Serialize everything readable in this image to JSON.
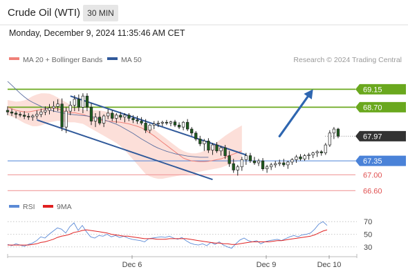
{
  "header": {
    "title": "Crude Oil (WTI)",
    "timeframe": "30 MIN",
    "datetime": "Monday, December 9, 2024 11:35:46 AM CET"
  },
  "legend": {
    "ma20_label": "MA 20 + Bollinger Bands",
    "ma50_label": "MA 50",
    "credit": "Research © 2024 Trading Central",
    "rsi_label": "RSI",
    "ma9_label": "9MA"
  },
  "colors": {
    "candle_up": "#ffffff",
    "candle_down": "#1f5c1f",
    "candle_wick": "#222222",
    "bollinger_fill": "#fcd9d2",
    "ma20": "#f08078",
    "ma50": "#5b6fa0",
    "channel": "#30599a",
    "resistance": "#6aa81e",
    "pivot": "#4a82d8",
    "support": "#f09a9a",
    "last_price_bg": "#333333",
    "rsi": "#5b8ad6",
    "rsi_ma": "#e02020",
    "arrow": "#2e66b0"
  },
  "chart_data": {
    "type": "candlestick",
    "title": "Crude Oil (WTI)",
    "timeframe": "30 MIN",
    "x_tick_labels": [
      "Dec 6",
      "Dec 9",
      "Dec 10"
    ],
    "ylim": [
      66.45,
      69.4
    ],
    "levels": [
      {
        "value": 69.15,
        "label": "69.15",
        "role": "resistance"
      },
      {
        "value": 68.7,
        "label": "68.70",
        "role": "resistance"
      },
      {
        "value": 67.97,
        "label": "67.97",
        "role": "last"
      },
      {
        "value": 67.35,
        "label": "67.35",
        "role": "pivot"
      },
      {
        "value": 67.0,
        "label": "67.00",
        "role": "support"
      },
      {
        "value": 66.6,
        "label": "66.60",
        "role": "support"
      }
    ],
    "candles": [
      [
        68.62,
        68.72,
        68.5,
        68.58
      ],
      [
        68.58,
        68.66,
        68.48,
        68.55
      ],
      [
        68.55,
        68.6,
        68.42,
        68.52
      ],
      [
        68.52,
        68.58,
        68.45,
        68.5
      ],
      [
        68.5,
        68.6,
        68.4,
        68.47
      ],
      [
        68.47,
        68.55,
        68.38,
        68.45
      ],
      [
        68.45,
        68.52,
        68.36,
        68.48
      ],
      [
        68.48,
        68.62,
        68.4,
        68.52
      ],
      [
        68.52,
        68.66,
        68.45,
        68.58
      ],
      [
        68.58,
        68.72,
        68.5,
        68.62
      ],
      [
        68.62,
        68.78,
        68.52,
        68.68
      ],
      [
        68.68,
        68.85,
        68.58,
        68.72
      ],
      [
        68.72,
        68.9,
        68.6,
        68.78
      ],
      [
        68.78,
        68.92,
        68.1,
        68.2
      ],
      [
        68.2,
        68.7,
        68.05,
        68.6
      ],
      [
        68.6,
        68.85,
        68.5,
        68.75
      ],
      [
        68.75,
        69.0,
        68.6,
        68.9
      ],
      [
        68.9,
        69.02,
        68.6,
        68.7
      ],
      [
        68.7,
        69.05,
        68.55,
        68.98
      ],
      [
        68.98,
        69.05,
        68.6,
        68.7
      ],
      [
        68.7,
        68.8,
        68.25,
        68.35
      ],
      [
        68.35,
        68.55,
        68.2,
        68.45
      ],
      [
        68.45,
        68.6,
        68.25,
        68.3
      ],
      [
        68.3,
        68.52,
        68.2,
        68.48
      ],
      [
        68.48,
        68.65,
        68.4,
        68.55
      ],
      [
        68.55,
        68.62,
        68.35,
        68.42
      ],
      [
        68.42,
        68.55,
        68.3,
        68.5
      ],
      [
        68.5,
        68.58,
        68.38,
        68.45
      ],
      [
        68.45,
        68.55,
        68.32,
        68.5
      ],
      [
        68.5,
        68.55,
        68.35,
        68.42
      ],
      [
        68.42,
        68.5,
        68.3,
        68.38
      ],
      [
        68.38,
        68.48,
        68.28,
        68.35
      ],
      [
        68.35,
        68.45,
        68.25,
        68.3
      ],
      [
        68.3,
        68.4,
        68.05,
        68.12
      ],
      [
        68.12,
        68.28,
        68.05,
        68.25
      ],
      [
        68.25,
        68.35,
        68.15,
        68.28
      ],
      [
        68.28,
        68.36,
        68.2,
        68.3
      ],
      [
        68.3,
        68.36,
        68.22,
        68.32
      ],
      [
        68.32,
        68.38,
        68.25,
        68.3
      ],
      [
        68.3,
        68.36,
        68.22,
        68.33
      ],
      [
        68.33,
        68.38,
        68.2,
        68.25
      ],
      [
        68.25,
        68.32,
        68.15,
        68.2
      ],
      [
        68.2,
        68.35,
        68.12,
        68.32
      ],
      [
        68.32,
        68.4,
        68.1,
        68.15
      ],
      [
        68.15,
        68.2,
        67.98,
        68.05
      ],
      [
        68.05,
        68.1,
        67.85,
        67.9
      ],
      [
        67.9,
        67.98,
        67.72,
        67.78
      ],
      [
        67.78,
        67.9,
        67.6,
        67.85
      ],
      [
        67.85,
        67.92,
        67.55,
        67.62
      ],
      [
        67.62,
        67.8,
        67.5,
        67.75
      ],
      [
        67.75,
        67.82,
        67.55,
        67.6
      ],
      [
        67.6,
        67.72,
        67.48,
        67.68
      ],
      [
        67.68,
        67.75,
        67.4,
        67.48
      ],
      [
        67.48,
        67.6,
        67.2,
        67.28
      ],
      [
        67.28,
        67.4,
        67.05,
        67.12
      ],
      [
        67.12,
        67.25,
        66.98,
        67.2
      ],
      [
        67.2,
        67.45,
        67.1,
        67.38
      ],
      [
        67.38,
        67.55,
        67.25,
        67.48
      ],
      [
        67.48,
        67.55,
        67.3,
        67.35
      ],
      [
        67.35,
        67.45,
        67.25,
        67.3
      ],
      [
        67.3,
        67.4,
        67.22,
        67.35
      ],
      [
        67.35,
        67.42,
        67.1,
        67.15
      ],
      [
        67.15,
        67.25,
        67.05,
        67.2
      ],
      [
        67.2,
        67.3,
        67.12,
        67.25
      ],
      [
        67.25,
        67.35,
        67.18,
        67.28
      ],
      [
        67.28,
        67.38,
        67.22,
        67.3
      ],
      [
        67.3,
        67.4,
        67.2,
        67.25
      ],
      [
        67.25,
        67.35,
        67.15,
        67.32
      ],
      [
        67.32,
        67.42,
        67.25,
        67.38
      ],
      [
        67.38,
        67.5,
        67.3,
        67.45
      ],
      [
        67.45,
        67.52,
        67.35,
        67.4
      ],
      [
        67.4,
        67.52,
        67.35,
        67.48
      ],
      [
        67.48,
        67.55,
        67.38,
        67.5
      ],
      [
        67.5,
        67.58,
        67.42,
        67.55
      ],
      [
        67.55,
        67.62,
        67.45,
        67.58
      ],
      [
        67.58,
        67.62,
        67.48,
        67.55
      ],
      [
        67.55,
        67.8,
        67.5,
        67.75
      ],
      [
        67.75,
        68.12,
        67.7,
        68.05
      ],
      [
        68.05,
        68.2,
        67.9,
        68.15
      ],
      [
        68.15,
        68.18,
        67.92,
        67.97
      ]
    ],
    "ma20": [
      68.7,
      68.66,
      68.62,
      68.6,
      68.58,
      68.58,
      68.6,
      68.62,
      68.64,
      68.66,
      68.68,
      68.68,
      68.66,
      68.62,
      68.58,
      68.56,
      68.56,
      68.54,
      68.52,
      68.48,
      68.44,
      68.4,
      68.38,
      68.36,
      68.35,
      68.34,
      68.33,
      68.32,
      68.3,
      68.28,
      68.25,
      68.22,
      68.18,
      68.12,
      68.05,
      67.98,
      67.9,
      67.82,
      67.74,
      67.66,
      67.58,
      67.5,
      67.42,
      67.38,
      67.35,
      67.34,
      67.33,
      67.33,
      67.34,
      67.36,
      67.38,
      67.4,
      67.44,
      67.48,
      67.52,
      67.56,
      67.6
    ],
    "bb_upper": [
      68.88,
      68.86,
      68.84,
      68.85,
      68.87,
      68.92,
      68.98,
      69.02,
      69.05,
      69.05,
      69.04,
      69.0,
      68.94,
      68.88,
      68.82,
      68.76,
      68.72,
      68.68,
      68.64,
      68.62,
      68.62,
      68.62,
      68.62,
      68.6,
      68.58,
      68.56,
      68.52,
      68.48,
      68.44,
      68.4,
      68.36,
      68.32,
      68.28,
      68.24,
      68.2,
      68.14,
      68.06,
      67.98,
      67.9,
      67.82,
      67.74,
      67.66,
      67.6,
      67.56,
      67.54,
      67.54,
      67.56,
      67.6,
      67.66,
      67.74,
      67.82,
      67.9,
      67.98,
      68.05,
      68.12,
      68.18,
      68.24
    ],
    "bb_lower": [
      68.5,
      68.46,
      68.42,
      68.36,
      68.3,
      68.26,
      68.22,
      68.22,
      68.24,
      68.28,
      68.32,
      68.34,
      68.36,
      68.34,
      68.32,
      68.32,
      68.32,
      68.3,
      68.28,
      68.22,
      68.16,
      68.1,
      68.04,
      67.98,
      67.92,
      67.86,
      67.8,
      67.72,
      67.62,
      67.5,
      67.38,
      67.26,
      67.14,
      67.02,
      66.96,
      66.92,
      66.9,
      66.9,
      66.92,
      66.94,
      66.96,
      66.98,
      67.0,
      67.02,
      67.04,
      67.06,
      67.08,
      67.1,
      67.12,
      67.14,
      67.16,
      67.18,
      67.22,
      67.26,
      67.3,
      67.34,
      67.38
    ],
    "ma50": [
      69.35,
      69.25,
      69.15,
      69.05,
      68.96,
      68.88,
      68.82,
      68.77,
      68.72,
      68.68,
      68.64,
      68.6,
      68.58,
      68.56,
      68.54,
      68.52,
      68.51,
      68.5,
      68.49,
      68.48,
      68.46,
      68.44,
      68.41,
      68.38,
      68.35,
      68.31,
      68.27,
      68.22,
      68.16,
      68.1,
      68.04,
      67.97,
      67.9,
      67.84,
      67.78,
      67.72,
      67.67,
      67.63,
      67.59,
      67.56,
      67.53,
      67.51,
      67.49,
      67.47,
      67.46,
      67.45,
      67.44,
      67.44,
      67.44
    ],
    "channel_upper": {
      "start": [
        15,
        68.98
      ],
      "end": [
        57,
        67.5
      ]
    },
    "channel_lower": {
      "start": [
        7,
        68.38
      ],
      "end": [
        49,
        66.88
      ]
    },
    "projection_arrow": {
      "start": [
        65,
        67.97
      ],
      "end": [
        73,
        69.15
      ]
    },
    "rsi": {
      "ylim": [
        20,
        80
      ],
      "ticks": [
        30,
        50,
        70
      ],
      "rsi_values": [
        34,
        32,
        35,
        33,
        31,
        34,
        36,
        40,
        46,
        44,
        50,
        55,
        60,
        58,
        52,
        62,
        68,
        56,
        64,
        54,
        46,
        44,
        48,
        47,
        50,
        46,
        48,
        45,
        47,
        44,
        42,
        41,
        40,
        38,
        43,
        44,
        45,
        46,
        45,
        47,
        44,
        42,
        45,
        40,
        36,
        34,
        33,
        35,
        32,
        37,
        34,
        38,
        33,
        30,
        28,
        35,
        41,
        44,
        40,
        38,
        40,
        35,
        38,
        40,
        41,
        42,
        40,
        43,
        46,
        48,
        46,
        49,
        50,
        52,
        58,
        66,
        70,
        64
      ],
      "ma_values": [
        33,
        33,
        33,
        33,
        33,
        33,
        34,
        35,
        37,
        38,
        40,
        42,
        45,
        47,
        48,
        50,
        53,
        54,
        56,
        57,
        56,
        55,
        54,
        53,
        52,
        50,
        49,
        48,
        47,
        47,
        46,
        45,
        44,
        43,
        43,
        43,
        42,
        42,
        42,
        43,
        43,
        43,
        43,
        43,
        42,
        41,
        40,
        39,
        38,
        37,
        36,
        36,
        35,
        35,
        34,
        34,
        35,
        36,
        37,
        38,
        38,
        38,
        38,
        38,
        39,
        40,
        40,
        41,
        42,
        43,
        44,
        45,
        46,
        47,
        49,
        52,
        55,
        57
      ],
      "labels": [
        "RSI",
        "9MA"
      ]
    }
  }
}
